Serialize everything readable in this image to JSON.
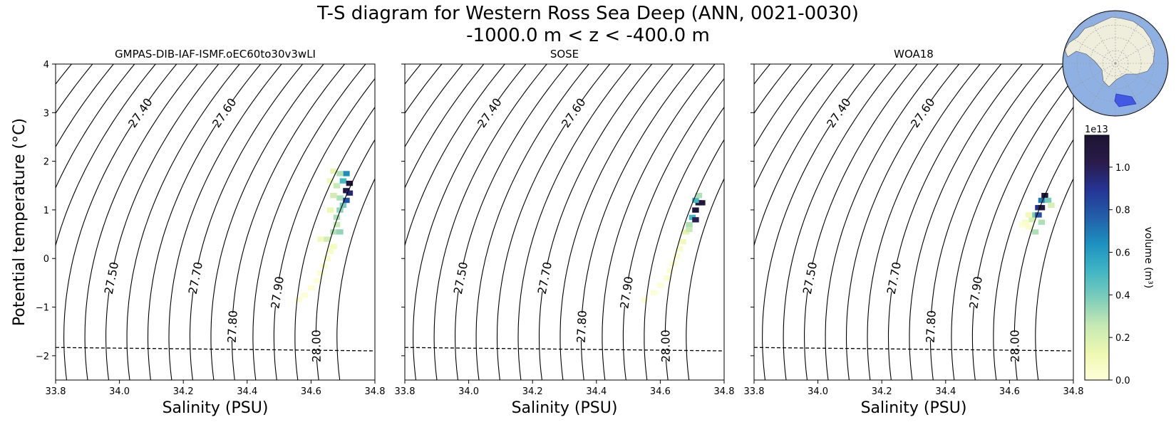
{
  "figure": {
    "title_line1": "T-S diagram for Western Ross Sea Deep (ANN, 0021-0030)",
    "title_line2": "-1000.0 m < z < -400.0 m"
  },
  "chart_data": [
    {
      "type": "heatmap",
      "title": "GMPAS-DIB-IAF-ISMF.oEC60to30v3wLI",
      "xlabel": "Salinity (PSU)",
      "ylabel": "Potential temperature ($^\\circ$C)",
      "ylabel_display": "Potential temperature (°C)",
      "xlim": [
        33.8,
        34.8
      ],
      "ylim": [
        -2.5,
        4
      ],
      "xticks": [
        "33.8",
        "34.0",
        "34.2",
        "34.4",
        "34.6",
        "34.8"
      ],
      "yticks": [
        "−2",
        "−1",
        "0",
        "1",
        "2",
        "3",
        "4"
      ],
      "freezing_line": [
        [
          33.8,
          -1.83
        ],
        [
          34.8,
          -1.9
        ]
      ],
      "cells": [
        [
          34.56,
          -0.85,
          0.01
        ],
        [
          34.58,
          -0.75,
          0.01
        ],
        [
          34.6,
          -0.6,
          0.02
        ],
        [
          34.62,
          -0.45,
          0.02
        ],
        [
          34.63,
          -0.3,
          0.03
        ],
        [
          34.64,
          -0.15,
          0.03
        ],
        [
          34.65,
          0.0,
          0.04
        ],
        [
          34.66,
          0.15,
          0.05
        ],
        [
          34.67,
          0.25,
          0.08
        ],
        [
          34.63,
          0.4,
          0.1
        ],
        [
          34.65,
          0.4,
          0.22
        ],
        [
          34.67,
          0.55,
          0.3
        ],
        [
          34.69,
          0.55,
          0.35
        ],
        [
          34.68,
          0.85,
          0.3
        ],
        [
          34.69,
          1.0,
          0.35
        ],
        [
          34.7,
          1.1,
          0.4
        ],
        [
          34.69,
          1.25,
          0.3
        ],
        [
          34.67,
          1.3,
          0.22
        ],
        [
          34.68,
          1.5,
          0.25
        ],
        [
          34.7,
          1.6,
          0.5
        ],
        [
          34.71,
          1.4,
          1.1
        ],
        [
          34.72,
          1.55,
          1.1
        ],
        [
          34.71,
          1.75,
          0.65
        ],
        [
          34.69,
          1.75,
          0.3
        ],
        [
          34.67,
          1.8,
          0.15
        ],
        [
          34.66,
          1.0,
          0.12
        ],
        [
          34.68,
          0.7,
          0.25
        ],
        [
          34.66,
          1.6,
          0.1
        ],
        [
          34.71,
          1.2,
          0.8
        ],
        [
          34.72,
          1.35,
          0.95
        ]
      ]
    },
    {
      "type": "heatmap",
      "title": "SOSE",
      "xlabel": "Salinity (PSU)",
      "xlim": [
        33.8,
        34.8
      ],
      "ylim": [
        -2.5,
        4
      ],
      "xticks": [
        "33.8",
        "34.0",
        "34.2",
        "34.4",
        "34.6",
        "34.8"
      ],
      "freezing_line": [
        [
          33.8,
          -1.83
        ],
        [
          34.8,
          -1.9
        ]
      ],
      "cells": [
        [
          34.55,
          -0.85,
          0.01
        ],
        [
          34.58,
          -0.7,
          0.01
        ],
        [
          34.6,
          -0.55,
          0.01
        ],
        [
          34.62,
          -0.4,
          0.02
        ],
        [
          34.63,
          -0.25,
          0.02
        ],
        [
          34.64,
          -0.1,
          0.03
        ],
        [
          34.65,
          0.05,
          0.03
        ],
        [
          34.66,
          0.2,
          0.05
        ],
        [
          34.67,
          0.35,
          0.1
        ],
        [
          34.68,
          0.55,
          0.15
        ],
        [
          34.69,
          0.7,
          0.3
        ],
        [
          34.7,
          0.85,
          0.5
        ],
        [
          34.71,
          1.0,
          1.1
        ],
        [
          34.72,
          1.15,
          1.1
        ],
        [
          34.73,
          1.15,
          1.1
        ],
        [
          34.71,
          1.2,
          0.5
        ],
        [
          34.71,
          0.8,
          1.0
        ],
        [
          34.69,
          0.6,
          0.25
        ],
        [
          34.72,
          1.3,
          0.3
        ]
      ]
    },
    {
      "type": "heatmap",
      "title": "WOA18",
      "xlabel": "Salinity (PSU)",
      "xlim": [
        33.8,
        34.8
      ],
      "ylim": [
        -2.5,
        4
      ],
      "xticks": [
        "33.8",
        "34.0",
        "34.2",
        "34.4",
        "34.6",
        "34.8"
      ],
      "freezing_line": [
        [
          33.8,
          -1.83
        ],
        [
          34.8,
          -1.9
        ]
      ],
      "cells": [
        [
          34.64,
          0.7,
          0.02
        ],
        [
          34.66,
          0.65,
          0.04
        ],
        [
          34.67,
          0.8,
          0.2
        ],
        [
          34.68,
          0.55,
          0.3
        ],
        [
          34.68,
          0.9,
          0.4
        ],
        [
          34.69,
          0.9,
          0.8
        ],
        [
          34.69,
          1.05,
          0.9
        ],
        [
          34.7,
          1.05,
          1.1
        ],
        [
          34.7,
          1.2,
          0.7
        ],
        [
          34.71,
          1.3,
          1.1
        ],
        [
          34.72,
          1.2,
          0.4
        ],
        [
          34.7,
          0.75,
          0.3
        ],
        [
          34.66,
          0.9,
          0.1
        ],
        [
          34.73,
          1.1,
          0.2
        ],
        [
          34.65,
          0.75,
          0.05
        ]
      ]
    }
  ],
  "density_contours": [
    "27.00",
    "27.10",
    "27.20",
    "27.30",
    "27.40",
    "27.50",
    "27.60",
    "27.70",
    "27.80",
    "27.90",
    "28.00"
  ],
  "colorbar": {
    "label": "volume (m$^3$)",
    "label_display": "volume (m³)",
    "offset_text": "1e13",
    "range": [
      0,
      1.15
    ],
    "ticks": [
      "0.0",
      "0.2",
      "0.4",
      "0.6",
      "0.8",
      "1.0"
    ],
    "colormap": [
      "#ffffd9",
      "#edf8b1",
      "#c7e9b4",
      "#7fcdbb",
      "#41b6c4",
      "#1d91c0",
      "#225ea8",
      "#253494",
      "#2a1b4a",
      "#1c1433"
    ]
  },
  "inset_map": {
    "ocean_color": "#8eb0e3",
    "land_color": "#efeedd",
    "region_color": "#3b50e3"
  }
}
